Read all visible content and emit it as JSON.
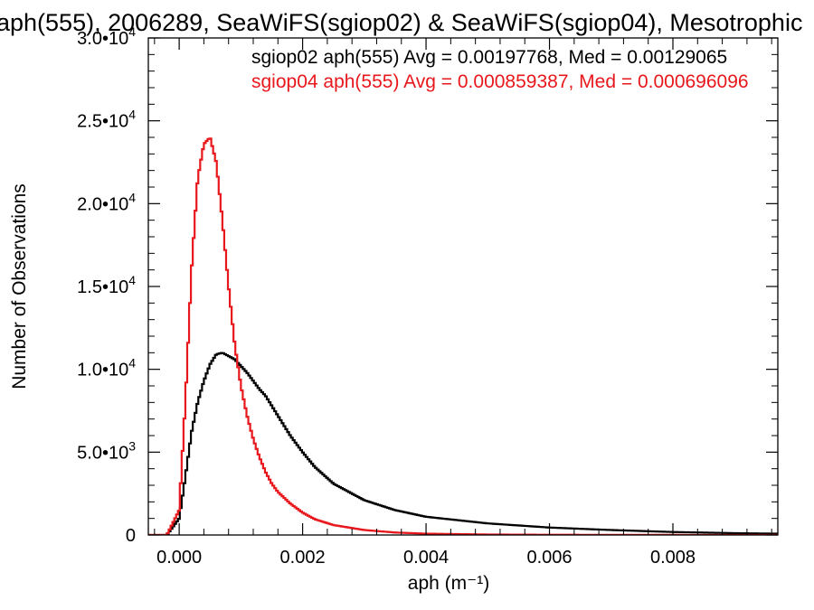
{
  "chart_data": {
    "type": "line",
    "step": true,
    "title": "aph(555), 2006289, SeaWiFS(sgiop02) & SeaWiFS(sgiop04), Mesotrophic",
    "xlabel": "aph (m⁻¹)",
    "ylabel": "Number of Observations",
    "xlim": [
      -0.0005,
      0.0097
    ],
    "ylim": [
      0,
      30000
    ],
    "xticks": [
      {
        "value": 0.0,
        "label": "0.000"
      },
      {
        "value": 0.002,
        "label": "0.002"
      },
      {
        "value": 0.004,
        "label": "0.004"
      },
      {
        "value": 0.006,
        "label": "0.006"
      },
      {
        "value": 0.008,
        "label": "0.008"
      }
    ],
    "yticks": [
      {
        "value": 0,
        "mant": "0",
        "exp": ""
      },
      {
        "value": 5000,
        "mant": "5.0",
        "exp": "3"
      },
      {
        "value": 10000,
        "mant": "1.0",
        "exp": "4"
      },
      {
        "value": 15000,
        "mant": "1.5",
        "exp": "4"
      },
      {
        "value": 20000,
        "mant": "2.0",
        "exp": "4"
      },
      {
        "value": 25000,
        "mant": "2.5",
        "exp": "4"
      },
      {
        "value": 30000,
        "mant": "3.0",
        "exp": "4"
      }
    ],
    "legend_position": "top-right",
    "series": [
      {
        "name": "sgiop02 aph(555) Avg = 0.00197768, Med = 0.00129065",
        "color": "#000000",
        "x": [
          -0.0005,
          -0.0002,
          0.0,
          0.0001,
          0.0002,
          0.0003,
          0.0004,
          0.0005,
          0.0006,
          0.0007,
          0.0008,
          0.0009,
          0.001,
          0.0011,
          0.0012,
          0.0013,
          0.0014,
          0.0015,
          0.0016,
          0.0018,
          0.002,
          0.0022,
          0.0025,
          0.003,
          0.0035,
          0.004,
          0.005,
          0.006,
          0.007,
          0.008,
          0.009,
          0.0097
        ],
        "y": [
          0,
          0,
          1000,
          3500,
          6200,
          8000,
          9300,
          10300,
          10900,
          11000,
          10800,
          10600,
          10200,
          9800,
          9300,
          8800,
          8400,
          7800,
          7200,
          6000,
          5000,
          4100,
          3100,
          2100,
          1500,
          1100,
          700,
          450,
          300,
          180,
          110,
          80
        ]
      },
      {
        "name": "sgiop04 aph(555) Avg = 0.000859387, Med = 0.000696096",
        "color": "#e8171c",
        "x": [
          -0.0005,
          -0.0002,
          0.0,
          0.0001,
          0.0002,
          0.0003,
          0.0004,
          0.0005,
          0.0006,
          0.0007,
          0.0008,
          0.0009,
          0.001,
          0.0011,
          0.0012,
          0.0013,
          0.0014,
          0.0015,
          0.0016,
          0.0018,
          0.002,
          0.0022,
          0.0025,
          0.003,
          0.0035,
          0.004,
          0.005,
          0.006,
          0.007,
          0.008,
          0.009,
          0.0097
        ],
        "y": [
          0,
          0,
          1500,
          8000,
          16000,
          21500,
          23600,
          24000,
          22500,
          19000,
          15000,
          11500,
          9000,
          7200,
          5800,
          4700,
          3800,
          3100,
          2600,
          1900,
          1350,
          950,
          600,
          300,
          150,
          80,
          30,
          15,
          8,
          5,
          3,
          2
        ]
      }
    ]
  }
}
